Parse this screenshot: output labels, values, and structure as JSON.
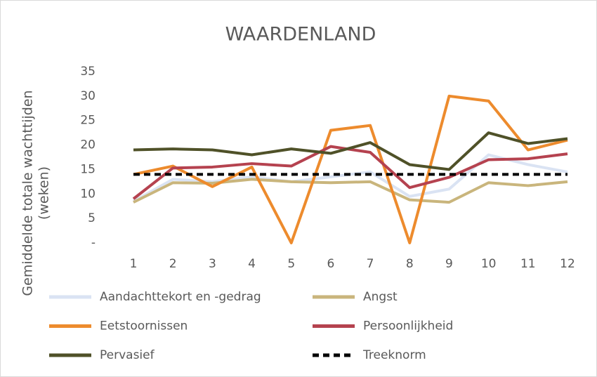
{
  "chart_data": {
    "type": "line",
    "title": "WAARDENLAND",
    "ylabel": [
      "Gemiddelde totale wachttijden",
      "(weken)"
    ],
    "categories": [
      "1",
      "2",
      "3",
      "4",
      "5",
      "6",
      "7",
      "8",
      "9",
      "10",
      "11",
      "12"
    ],
    "ylim": [
      0,
      35
    ],
    "yticks": [
      {
        "value": 0,
        "label": "-"
      },
      5,
      10,
      15,
      20,
      25,
      30,
      35
    ],
    "series": [
      {
        "name": "Aandachttekort en -gedrag",
        "color": "#dae3f3",
        "values": [
          8.5,
          13,
          12.5,
          13.5,
          12.5,
          13.5,
          14.5,
          9.5,
          11,
          18,
          16,
          14.5
        ]
      },
      {
        "name": "Angst",
        "color": "#c9b57c",
        "values": [
          8.3,
          12.3,
          12.2,
          13,
          12.5,
          12.3,
          12.5,
          8.8,
          8.3,
          12.3,
          11.7,
          12.5
        ]
      },
      {
        "name": "Eetstoornissen",
        "color": "#ed8b2d",
        "values": [
          14,
          15.7,
          11.5,
          15.5,
          0,
          23,
          24,
          0,
          30,
          29,
          19,
          21
        ]
      },
      {
        "name": "Persoonlijkheid",
        "color": "#b5424f",
        "values": [
          9,
          15.3,
          15.5,
          16.2,
          15.7,
          19.7,
          18.5,
          11.3,
          13.4,
          17,
          17.2,
          18.2
        ]
      },
      {
        "name": "Pervasief",
        "color": "#4f5128",
        "values": [
          19,
          19.2,
          19,
          18,
          19.2,
          18.3,
          20.5,
          16,
          15,
          22.5,
          20.3,
          21.3
        ]
      },
      {
        "name": "Treeknorm",
        "color": "#000000",
        "dash": true,
        "values": [
          14,
          14,
          14,
          14,
          14,
          14,
          14,
          14,
          14,
          14,
          14,
          14
        ]
      }
    ]
  }
}
